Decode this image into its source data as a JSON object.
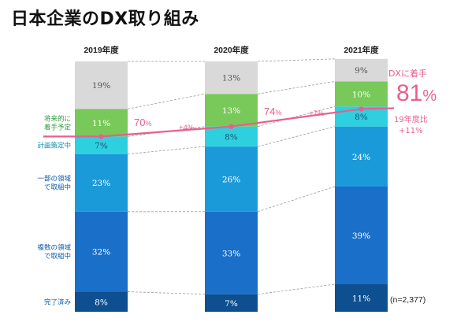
{
  "title": "日本企業のDX取り組み",
  "chart_data": {
    "type": "stacked-bar",
    "categories": [
      "2019年度",
      "2020年度",
      "2021年度"
    ],
    "series": [
      {
        "name": "完了済み",
        "values": [
          8,
          7,
          11
        ],
        "color": "#0d4f8f",
        "text_color": "#ffffff"
      },
      {
        "name": "複数の領域で取組中",
        "values": [
          32,
          33,
          39
        ],
        "color": "#1a6fc8",
        "text_color": "#ffffff"
      },
      {
        "name": "一部の領域で取組中",
        "values": [
          23,
          26,
          24
        ],
        "color": "#1b9ad9",
        "text_color": "#ffffff"
      },
      {
        "name": "計画策定中",
        "values": [
          7,
          8,
          8
        ],
        "color": "#2ed0df",
        "text_color": "#1a5577"
      },
      {
        "name": "将来的に着手予定",
        "values": [
          11,
          13,
          10
        ],
        "color": "#78c85a",
        "text_color": "#ffffff"
      },
      {
        "name": "",
        "values": [
          19,
          13,
          9
        ],
        "color": "#d9d9d9",
        "text_color": "#555555"
      }
    ],
    "category_labels": [
      {
        "lines": [
          "完了済み"
        ],
        "series": 0,
        "style": "blue"
      },
      {
        "lines": [
          "複数の領域",
          "で取組中"
        ],
        "series": 1,
        "style": "blue"
      },
      {
        "lines": [
          "一部の領域",
          "で取組中"
        ],
        "series": 2,
        "style": "blue"
      },
      {
        "lines": [
          "計画策定中"
        ],
        "series": 3,
        "style": "cyan"
      },
      {
        "lines": [
          "将来的に",
          "着手予定"
        ],
        "series": 4,
        "style": "green"
      }
    ],
    "trend_line": {
      "values": [
        70,
        74,
        81
      ],
      "point_labels": [
        {
          "main": "70",
          "unit": "%"
        },
        {
          "main": "74",
          "unit": "%"
        },
        {
          "main": "81",
          "unit": "%"
        }
      ],
      "changes": [
        "+4%",
        "+7%"
      ],
      "color": "#e95f8c"
    },
    "highlight": {
      "title": "DXに着手",
      "value": "81",
      "unit": "%",
      "compare_line1": "19年度比",
      "compare_line2": "+11%"
    },
    "note": "(n=2,377)",
    "ylim": [
      0,
      100
    ]
  }
}
